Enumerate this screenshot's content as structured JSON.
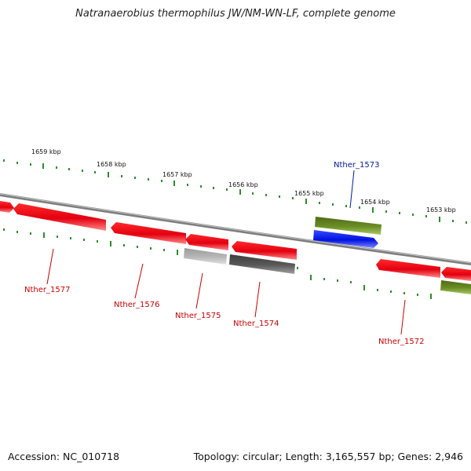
{
  "title": "Natranaerobius thermophilus JW/NM-WN-LF, complete genome",
  "accession": "Accession: NC_010718",
  "summary": "Topology: circular; Length: 3,165,557 bp; Genes: 2,946",
  "colors": {
    "tick": "#2e8b2e",
    "backbone": "#888888",
    "red": "#e8000f",
    "blue": "#0a1de8",
    "olive": "#6b8e23",
    "gray_light": "#b5b5b5",
    "gray_dark": "#5a5a5a",
    "label_red": "#cc0000",
    "label_blue": "#001a99"
  },
  "ticks": [
    "1659 kbp",
    "1658 kbp",
    "1657 kbp",
    "1656 kbp",
    "1655 kbp",
    "1654 kbp",
    "1653 kbp"
  ],
  "genes": [
    {
      "label": "Nther_1577",
      "color": "red"
    },
    {
      "label": "Nther_1576",
      "color": "red"
    },
    {
      "label": "Nther_1575",
      "color": "red"
    },
    {
      "label": "Nther_1574",
      "color": "red"
    },
    {
      "label": "Nther_1573",
      "color": "blue"
    },
    {
      "label": "Nther_1572",
      "color": "red"
    }
  ]
}
